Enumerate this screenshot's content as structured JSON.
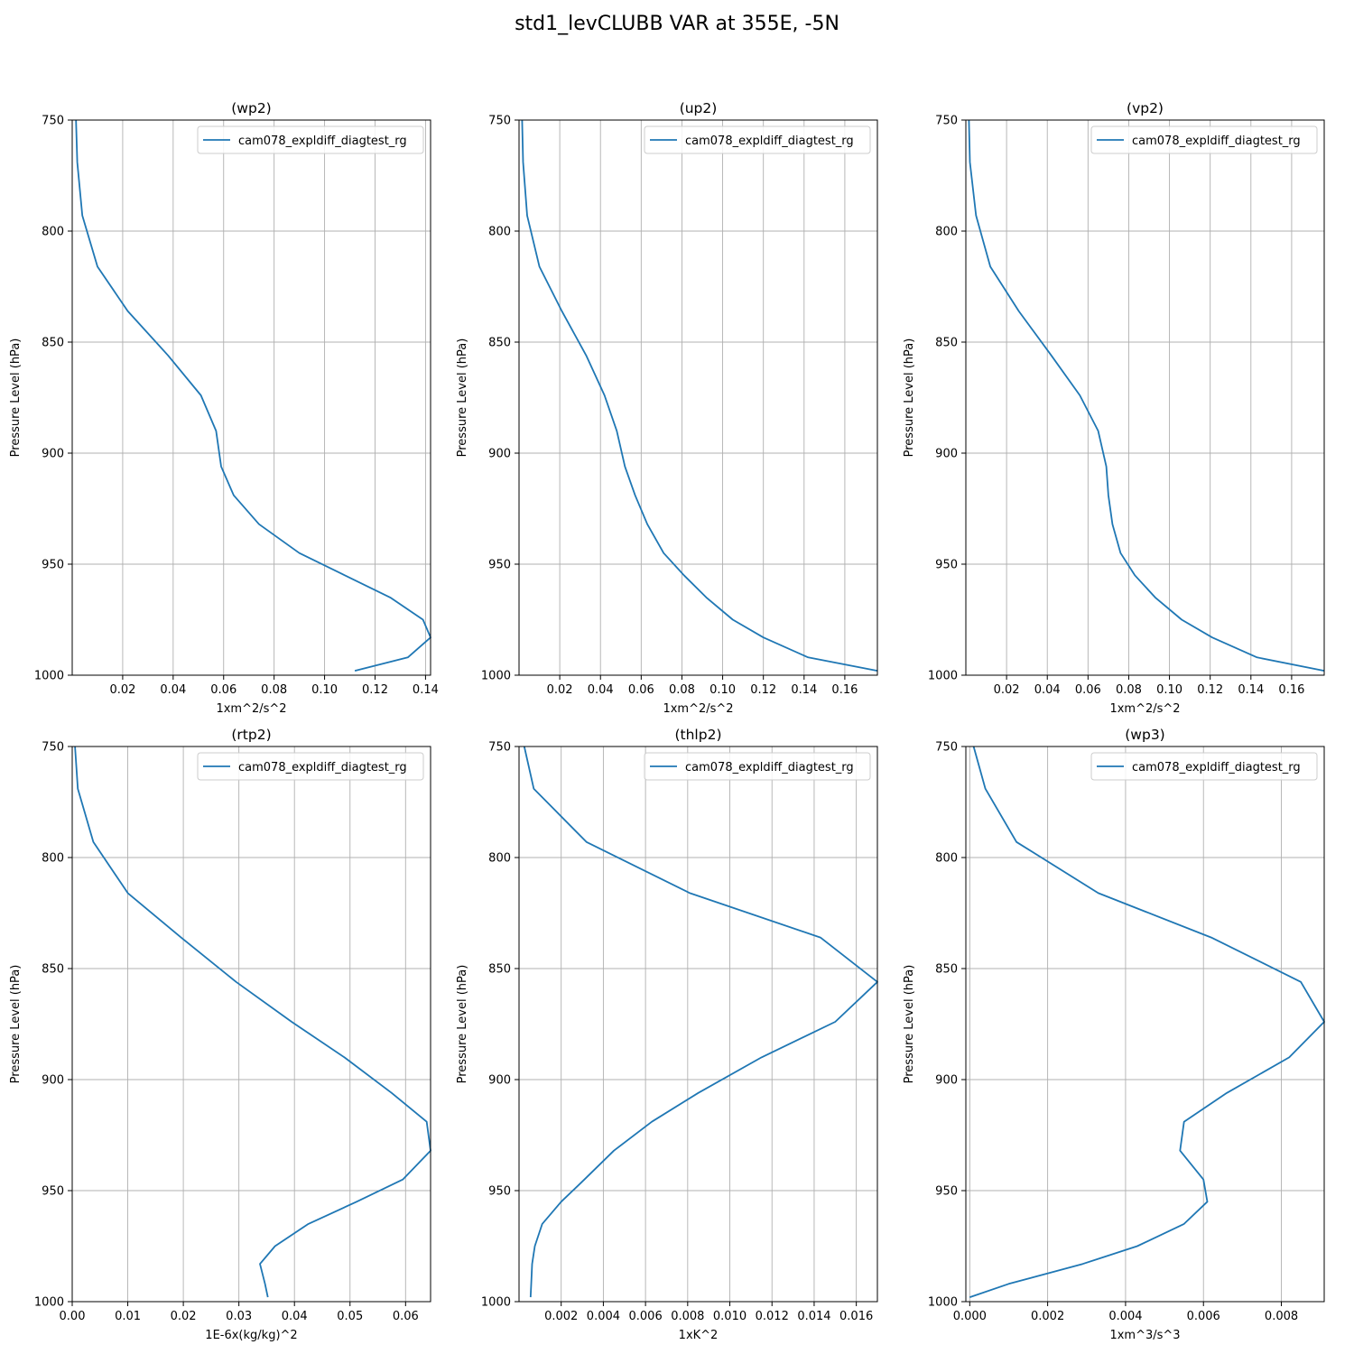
{
  "figure_title": "std1_levCLUBB VAR at 355E, -5N",
  "colors": {
    "series": "#1f77b4",
    "grid": "#b0b0b0",
    "axes": "#000000"
  },
  "chart_data": [
    {
      "type": "line",
      "title": "(wp2)",
      "xlabel": "1xm^2/s^2",
      "ylabel": "Pressure Level (hPa)",
      "xlim": [
        0.0,
        0.142
      ],
      "ylim": [
        1000,
        750
      ],
      "xticks": [
        0.02,
        0.04,
        0.06,
        0.08,
        0.1,
        0.12,
        0.14
      ],
      "xtick_labels": [
        "0.02",
        "0.04",
        "0.06",
        "0.08",
        "0.10",
        "0.12",
        "0.14"
      ],
      "yticks": [
        750,
        800,
        850,
        900,
        950,
        1000
      ],
      "ytick_labels": [
        "750",
        "800",
        "850",
        "900",
        "950",
        "1000"
      ],
      "grid": true,
      "legend": "upper right",
      "series": [
        {
          "name": "cam078_expldiff_diagtest_rg",
          "x": [
            0.0015,
            0.002,
            0.004,
            0.01,
            0.022,
            0.038,
            0.051,
            0.057,
            0.059,
            0.064,
            0.074,
            0.09,
            0.126,
            0.139,
            0.142,
            0.133,
            0.112
          ],
          "y": [
            750,
            769,
            793,
            816,
            836,
            856,
            874,
            890,
            906,
            919,
            932,
            945,
            965,
            975,
            983,
            992,
            998
          ]
        }
      ]
    },
    {
      "type": "line",
      "title": "(up2)",
      "xlabel": "1xm^2/s^2",
      "ylabel": "Pressure Level (hPa)",
      "xlim": [
        0.0,
        0.176
      ],
      "ylim": [
        1000,
        750
      ],
      "xticks": [
        0.02,
        0.04,
        0.06,
        0.08,
        0.1,
        0.12,
        0.14,
        0.16
      ],
      "xtick_labels": [
        "0.02",
        "0.04",
        "0.06",
        "0.08",
        "0.10",
        "0.12",
        "0.14",
        "0.16"
      ],
      "yticks": [
        750,
        800,
        850,
        900,
        950,
        1000
      ],
      "ytick_labels": [
        "750",
        "800",
        "850",
        "900",
        "950",
        "1000"
      ],
      "grid": true,
      "legend": "upper right",
      "series": [
        {
          "name": "cam078_expldiff_diagtest_rg",
          "x": [
            0.0015,
            0.002,
            0.004,
            0.01,
            0.021,
            0.033,
            0.042,
            0.048,
            0.052,
            0.057,
            0.063,
            0.071,
            0.081,
            0.092,
            0.105,
            0.12,
            0.142,
            0.176
          ],
          "y": [
            750,
            769,
            793,
            816,
            836,
            856,
            874,
            890,
            906,
            919,
            932,
            945,
            955,
            965,
            975,
            983,
            992,
            998
          ]
        }
      ]
    },
    {
      "type": "line",
      "title": "(vp2)",
      "xlabel": "1xm^2/s^2",
      "ylabel": "Pressure Level (hPa)",
      "xlim": [
        0.0,
        0.176
      ],
      "ylim": [
        1000,
        750
      ],
      "xticks": [
        0.02,
        0.04,
        0.06,
        0.08,
        0.1,
        0.12,
        0.14,
        0.16
      ],
      "xtick_labels": [
        "0.02",
        "0.04",
        "0.06",
        "0.08",
        "0.10",
        "0.12",
        "0.14",
        "0.16"
      ],
      "yticks": [
        750,
        800,
        850,
        900,
        950,
        1000
      ],
      "ytick_labels": [
        "750",
        "800",
        "850",
        "900",
        "950",
        "1000"
      ],
      "grid": true,
      "legend": "upper right",
      "series": [
        {
          "name": "cam078_expldiff_diagtest_rg",
          "x": [
            0.0015,
            0.002,
            0.005,
            0.012,
            0.026,
            0.042,
            0.056,
            0.065,
            0.069,
            0.07,
            0.072,
            0.076,
            0.083,
            0.093,
            0.106,
            0.121,
            0.143,
            0.176
          ],
          "y": [
            750,
            769,
            793,
            816,
            836,
            856,
            874,
            890,
            906,
            919,
            932,
            945,
            955,
            965,
            975,
            983,
            992,
            998
          ]
        }
      ]
    },
    {
      "type": "line",
      "title": "(rtp2)",
      "xlabel": "1E-6x(kg/kg)^2",
      "ylabel": "Pressure Level (hPa)",
      "xlim": [
        0.0,
        0.0645
      ],
      "ylim": [
        1000,
        750
      ],
      "xticks": [
        0.0,
        0.01,
        0.02,
        0.03,
        0.04,
        0.05,
        0.06
      ],
      "xtick_labels": [
        "0.00",
        "0.01",
        "0.02",
        "0.03",
        "0.04",
        "0.05",
        "0.06"
      ],
      "yticks": [
        750,
        800,
        850,
        900,
        950,
        1000
      ],
      "ytick_labels": [
        "750",
        "800",
        "850",
        "900",
        "950",
        "1000"
      ],
      "grid": true,
      "legend": "upper right",
      "series": [
        {
          "name": "cam078_expldiff_diagtest_rg",
          "x": [
            0.0005,
            0.001,
            0.0038,
            0.01,
            0.0196,
            0.0295,
            0.0395,
            0.049,
            0.0575,
            0.0638,
            0.0645,
            0.0595,
            0.0512,
            0.0425,
            0.0365,
            0.0338,
            0.0347,
            0.0352
          ],
          "y": [
            750,
            769,
            793,
            816,
            836,
            856,
            874,
            890,
            906,
            919,
            932,
            945,
            955,
            965,
            975,
            983,
            992,
            998
          ]
        }
      ]
    },
    {
      "type": "line",
      "title": "(thlp2)",
      "xlabel": "1xK^2",
      "ylabel": "Pressure Level (hPa)",
      "xlim": [
        0.0,
        0.017
      ],
      "ylim": [
        1000,
        750
      ],
      "xticks": [
        0.002,
        0.004,
        0.006,
        0.008,
        0.01,
        0.012,
        0.014,
        0.016
      ],
      "xtick_labels": [
        "0.002",
        "0.004",
        "0.006",
        "0.008",
        "0.010",
        "0.012",
        "0.014",
        "0.016"
      ],
      "yticks": [
        750,
        800,
        850,
        900,
        950,
        1000
      ],
      "ytick_labels": [
        "750",
        "800",
        "850",
        "900",
        "950",
        "1000"
      ],
      "grid": true,
      "legend": "upper right",
      "series": [
        {
          "name": "cam078_expldiff_diagtest_rg",
          "x": [
            0.00025,
            0.0007,
            0.0032,
            0.0081,
            0.0143,
            0.017,
            0.015,
            0.0115,
            0.0085,
            0.0063,
            0.0045,
            0.0031,
            0.002,
            0.0011,
            0.00075,
            0.00062,
            0.00058,
            0.00055
          ],
          "y": [
            750,
            769,
            793,
            816,
            836,
            856,
            874,
            890,
            906,
            919,
            932,
            945,
            955,
            965,
            975,
            983,
            992,
            998
          ]
        }
      ]
    },
    {
      "type": "line",
      "title": "(wp3)",
      "xlabel": "1xm^3/s^3",
      "ylabel": "Pressure Level (hPa)",
      "xlim": [
        -0.0001,
        0.0091
      ],
      "ylim": [
        1000,
        750
      ],
      "xticks": [
        0.0,
        0.002,
        0.004,
        0.006,
        0.008
      ],
      "xtick_labels": [
        "0.000",
        "0.002",
        "0.004",
        "0.006",
        "0.008"
      ],
      "yticks": [
        750,
        800,
        850,
        900,
        950,
        1000
      ],
      "ytick_labels": [
        "750",
        "800",
        "850",
        "900",
        "950",
        "1000"
      ],
      "grid": true,
      "legend": "upper right",
      "series": [
        {
          "name": "cam078_expldiff_diagtest_rg",
          "x": [
            0.0001,
            0.0004,
            0.0012,
            0.0033,
            0.0062,
            0.0085,
            0.0091,
            0.0082,
            0.0066,
            0.0055,
            0.0054,
            0.006,
            0.0061,
            0.0055,
            0.0043,
            0.0029,
            0.001,
            0.0
          ],
          "y": [
            750,
            769,
            793,
            816,
            836,
            856,
            874,
            890,
            906,
            919,
            932,
            945,
            955,
            965,
            975,
            983,
            992,
            998
          ]
        }
      ]
    }
  ]
}
